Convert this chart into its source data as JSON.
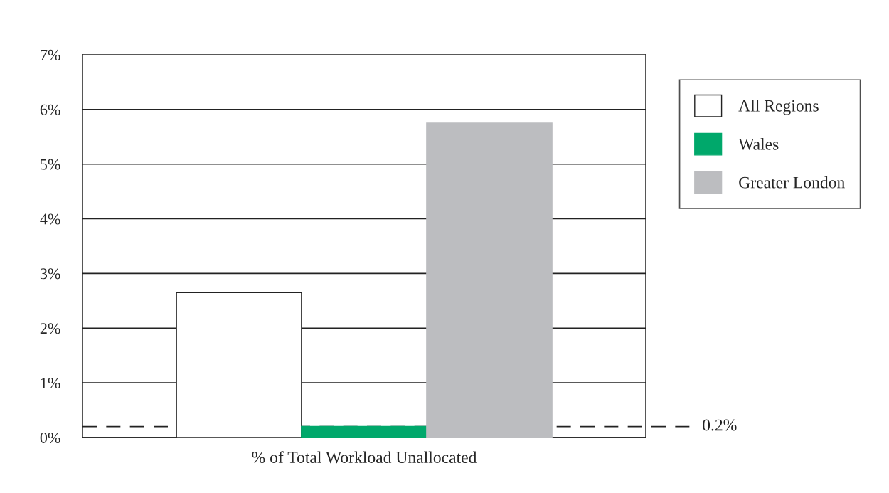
{
  "chart_data": {
    "type": "bar",
    "categories": [
      "% of Total Workload Unallocated"
    ],
    "series": [
      {
        "name": "All Regions",
        "color": "#ffffff",
        "values": [
          2.65
        ]
      },
      {
        "name": "Wales",
        "color": "#00a86b",
        "values": [
          0.2
        ]
      },
      {
        "name": "Greater London",
        "color": "#bcbdc0",
        "values": [
          5.75
        ]
      }
    ],
    "ylim": [
      0,
      7
    ],
    "yticks": [
      {
        "value": 0,
        "label": "0%"
      },
      {
        "value": 1,
        "label": "1%"
      },
      {
        "value": 2,
        "label": "2%"
      },
      {
        "value": 3,
        "label": "3%"
      },
      {
        "value": 4,
        "label": "4%"
      },
      {
        "value": 5,
        "label": "5%"
      },
      {
        "value": 6,
        "label": "6%"
      },
      {
        "value": 7,
        "label": "7%"
      }
    ],
    "grid": "y",
    "legend": "right",
    "ref_lines": [
      {
        "axis": "y",
        "value": 0.2,
        "label": "0.2%",
        "line_style": "dashed",
        "color": "#222222"
      }
    ]
  }
}
